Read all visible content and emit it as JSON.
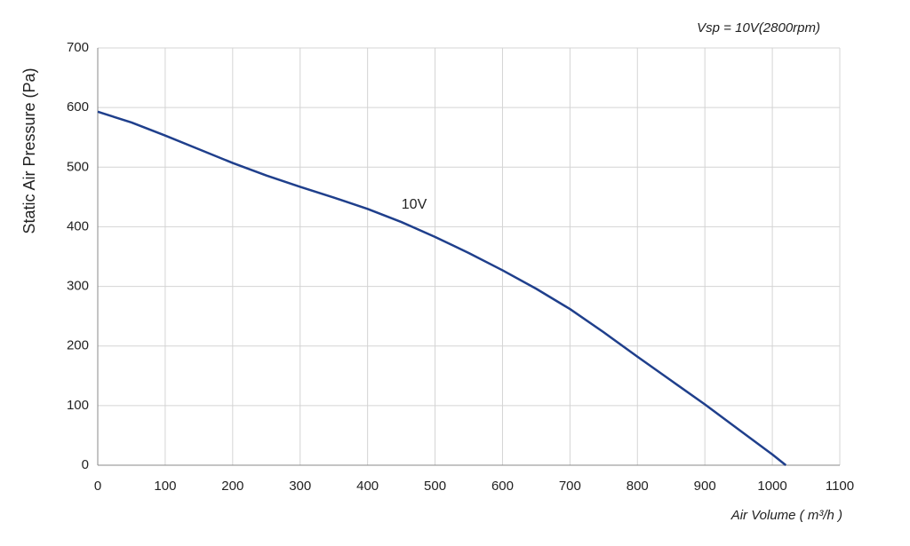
{
  "chart_data": {
    "type": "line",
    "title": "Vsp = 10V(2800rpm)",
    "x_label": "Air Volume ( m³/h )",
    "y_label": "Static Air Pressure  (Pa)",
    "annotation": "10V",
    "x": [
      0,
      50,
      100,
      150,
      200,
      250,
      300,
      350,
      400,
      450,
      500,
      550,
      600,
      650,
      700,
      750,
      800,
      850,
      900,
      950,
      1000,
      1020
    ],
    "series": [
      {
        "name": "10V",
        "color": "#1f3f8c",
        "values": [
          593,
          575,
          553,
          530,
          507,
          486,
          467,
          449,
          430,
          408,
          383,
          356,
          327,
          296,
          262,
          223,
          182,
          142,
          102,
          60,
          18,
          0
        ]
      }
    ],
    "xlim": [
      0,
      1100
    ],
    "ylim": [
      0,
      700
    ],
    "xticks": [
      0,
      100,
      200,
      300,
      400,
      500,
      600,
      700,
      800,
      900,
      1000,
      1100
    ],
    "yticks": [
      0,
      100,
      200,
      300,
      400,
      500,
      600,
      700
    ],
    "grid": true
  }
}
